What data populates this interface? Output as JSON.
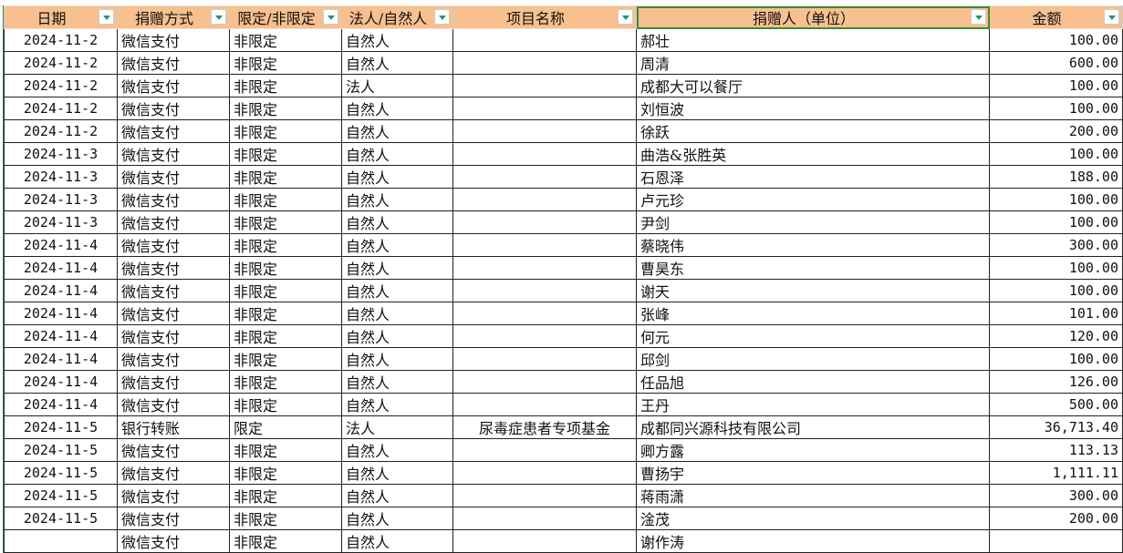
{
  "headers": [
    "日期",
    "捐赠方式",
    "限定/非限定",
    "法人/自然人",
    "项目名称",
    "捐赠人（单位）",
    "金额"
  ],
  "rows": [
    [
      "2024-11-2",
      "微信支付",
      "非限定",
      "自然人",
      "",
      "郝壮",
      "100.00"
    ],
    [
      "2024-11-2",
      "微信支付",
      "非限定",
      "自然人",
      "",
      "周清",
      "600.00"
    ],
    [
      "2024-11-2",
      "微信支付",
      "非限定",
      "法人",
      "",
      "成都大可以餐厅",
      "100.00"
    ],
    [
      "2024-11-2",
      "微信支付",
      "非限定",
      "自然人",
      "",
      "刘恒波",
      "100.00"
    ],
    [
      "2024-11-2",
      "微信支付",
      "非限定",
      "自然人",
      "",
      "徐跃",
      "200.00"
    ],
    [
      "2024-11-3",
      "微信支付",
      "非限定",
      "自然人",
      "",
      "曲浩&张胜英",
      "100.00"
    ],
    [
      "2024-11-3",
      "微信支付",
      "非限定",
      "自然人",
      "",
      "石恩泽",
      "188.00"
    ],
    [
      "2024-11-3",
      "微信支付",
      "非限定",
      "自然人",
      "",
      "卢元珍",
      "100.00"
    ],
    [
      "2024-11-3",
      "微信支付",
      "非限定",
      "自然人",
      "",
      "尹剑",
      "100.00"
    ],
    [
      "2024-11-4",
      "微信支付",
      "非限定",
      "自然人",
      "",
      "蔡晓伟",
      "300.00"
    ],
    [
      "2024-11-4",
      "微信支付",
      "非限定",
      "自然人",
      "",
      "曹昊东",
      "100.00"
    ],
    [
      "2024-11-4",
      "微信支付",
      "非限定",
      "自然人",
      "",
      "谢天",
      "100.00"
    ],
    [
      "2024-11-4",
      "微信支付",
      "非限定",
      "自然人",
      "",
      "张峰",
      "101.00"
    ],
    [
      "2024-11-4",
      "微信支付",
      "非限定",
      "自然人",
      "",
      "何元",
      "120.00"
    ],
    [
      "2024-11-4",
      "微信支付",
      "非限定",
      "自然人",
      "",
      "邱剑",
      "100.00"
    ],
    [
      "2024-11-4",
      "微信支付",
      "非限定",
      "自然人",
      "",
      "任品旭",
      "126.00"
    ],
    [
      "2024-11-4",
      "微信支付",
      "非限定",
      "自然人",
      "",
      "王丹",
      "500.00"
    ],
    [
      "2024-11-5",
      "银行转账",
      "限定",
      "法人",
      "尿毒症患者专项基金",
      "成都同兴源科技有限公司",
      "36,713.40"
    ],
    [
      "2024-11-5",
      "微信支付",
      "非限定",
      "自然人",
      "",
      "卿方露",
      "113.13"
    ],
    [
      "2024-11-5",
      "微信支付",
      "非限定",
      "自然人",
      "",
      "曹扬宇",
      "1,111.11"
    ],
    [
      "2024-11-5",
      "微信支付",
      "非限定",
      "自然人",
      "",
      "蒋雨潇",
      "300.00"
    ],
    [
      "2024-11-5",
      "微信支付",
      "非限定",
      "自然人",
      "",
      "淦茂",
      "200.00"
    ],
    [
      "",
      "微信支付",
      "非限定",
      "自然人",
      "",
      "谢作涛",
      ""
    ]
  ],
  "colors": {
    "header_bg": "#f8c08f",
    "filter_arrow": "#1a9b6e",
    "selection": "#3a8a3a"
  }
}
